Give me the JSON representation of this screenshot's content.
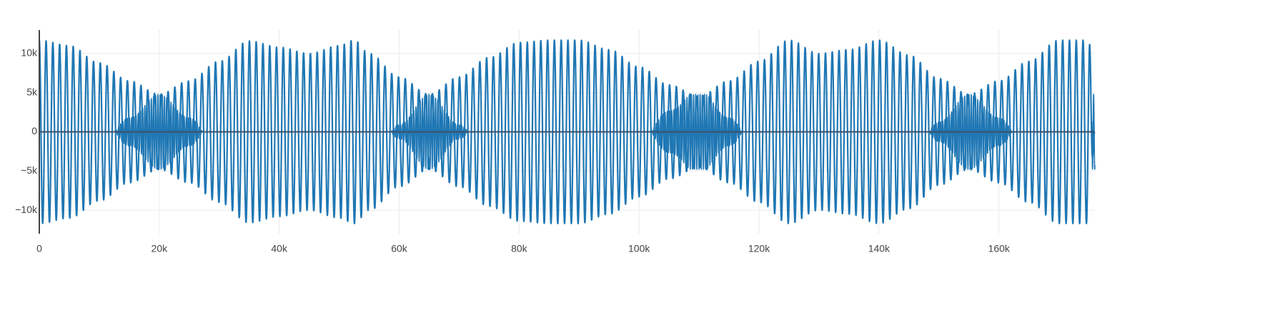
{
  "chart_data": {
    "type": "line",
    "title": "",
    "xlabel": "",
    "ylabel": "",
    "xlim": [
      0,
      176000
    ],
    "ylim": [
      -13000,
      13000
    ],
    "grid": true,
    "legend": "none",
    "x_ticks": [
      {
        "value": 0,
        "label": "0"
      },
      {
        "value": 20000,
        "label": "20k"
      },
      {
        "value": 40000,
        "label": "40k"
      },
      {
        "value": 60000,
        "label": "60k"
      },
      {
        "value": 80000,
        "label": "80k"
      },
      {
        "value": 100000,
        "label": "100k"
      },
      {
        "value": 120000,
        "label": "120k"
      },
      {
        "value": 140000,
        "label": "140k"
      },
      {
        "value": 160000,
        "label": "160k"
      }
    ],
    "y_ticks": [
      {
        "value": 10000,
        "label": "10k"
      },
      {
        "value": 5000,
        "label": "5k"
      },
      {
        "value": 0,
        "label": "0"
      },
      {
        "value": -5000,
        "label": "−5k"
      },
      {
        "value": -10000,
        "label": "−10k"
      }
    ],
    "series": [
      {
        "color": "#1f77b4",
        "form": "oscillating waveform; envelope points give the peak amplitude",
        "envelope": {
          "x": [
            0,
            5000,
            10000,
            15000,
            20000,
            25000,
            30000,
            35000,
            40000,
            45000,
            50000,
            52500,
            55000,
            60000,
            65000,
            70000,
            75000,
            80000,
            85000,
            90000,
            95000,
            100000,
            105000,
            110000,
            115000,
            120000,
            125000,
            130000,
            135000,
            140000,
            145000,
            150000,
            155000,
            160000,
            165000,
            170000,
            175000,
            176000
          ],
          "y": [
            11700,
            11000,
            8800,
            6500,
            4800,
            6500,
            9000,
            11600,
            10800,
            10000,
            11000,
            11700,
            10000,
            7000,
            4800,
            7000,
            9500,
            11400,
            11700,
            11700,
            10500,
            8300,
            6000,
            4500,
            6500,
            9000,
            11700,
            10000,
            10500,
            11700,
            9800,
            6800,
            4800,
            6500,
            9000,
            11700,
            11700,
            0
          ]
        },
        "inner_burst_peak": 4800,
        "period": 1130
      }
    ]
  }
}
